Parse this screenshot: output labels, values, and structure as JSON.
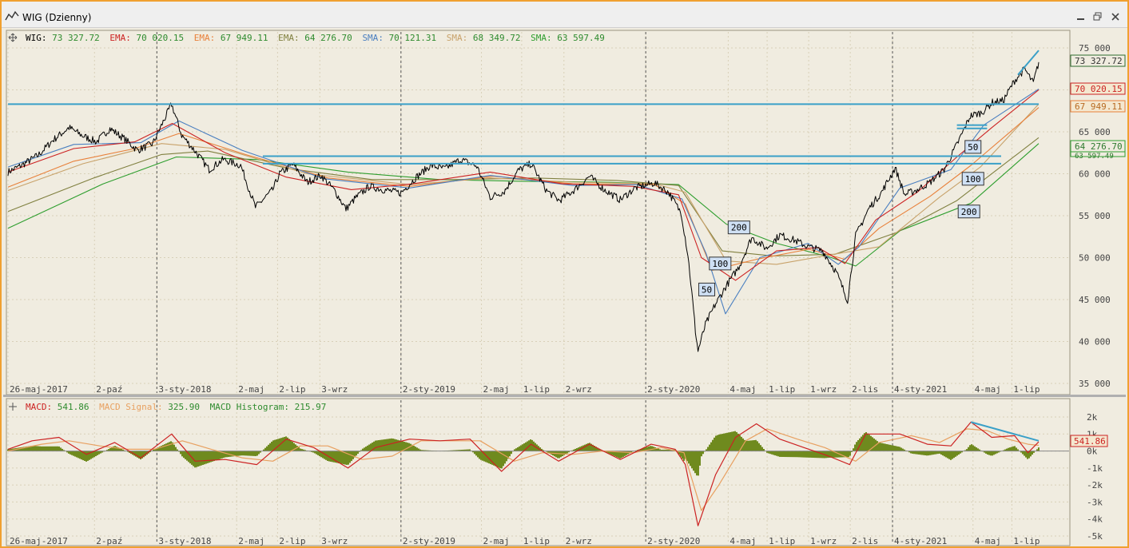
{
  "window": {
    "title": "WIG (Dzienny)"
  },
  "colors": {
    "price": "#000000",
    "ema_fast": "#cc2222",
    "ema_mid": "#e8803a",
    "ema_slow": "#808040",
    "sma_fast": "#4a7fc0",
    "sma_mid": "#c8a26a",
    "sma_slow": "#2e9e2e",
    "trendline": "#3aa0c8",
    "macd": "#cc2222",
    "signal": "#e8a060",
    "histogram": "#6f8a1e",
    "pane_bg": "#f0ece0",
    "grid": "#d8d0b8"
  },
  "legend": {
    "price": {
      "name": "WIG",
      "value": "73 327.72"
    },
    "ema1": {
      "name": "EMA",
      "value": "70 020.15"
    },
    "ema2": {
      "name": "EMA",
      "value": "67 949.11"
    },
    "ema3": {
      "name": "EMA",
      "value": "64 276.70"
    },
    "sma1": {
      "name": "SMA",
      "value": "70 121.31"
    },
    "sma2": {
      "name": "SMA",
      "value": "68 349.72"
    },
    "sma3": {
      "name": "SMA",
      "value": "63 597.49"
    }
  },
  "macd_legend": {
    "macd": {
      "name": "MACD",
      "value": "541.86"
    },
    "signal": {
      "name": "MACD Signal",
      "value": "325.90"
    },
    "hist": {
      "name": "MACD Histogram",
      "value": "215.97"
    }
  },
  "right_labels": {
    "price": "73 327.72",
    "ema1": "70 020.15",
    "ema2": "67 949.11",
    "ema3": "64 276.70",
    "sma3": "63 597.49",
    "macd": "541.86"
  },
  "chart_data": [
    {
      "type": "line",
      "pane": "price",
      "ylim": [
        35000,
        75000
      ],
      "y_ticks": [
        {
          "v": 75000,
          "label": "75 000"
        },
        {
          "v": 70000,
          "label": "70 000"
        },
        {
          "v": 65000,
          "label": "65 000"
        },
        {
          "v": 60000,
          "label": "60 000"
        },
        {
          "v": 55000,
          "label": "55 000"
        },
        {
          "v": 50000,
          "label": "50 000"
        },
        {
          "v": 45000,
          "label": "45 000"
        },
        {
          "v": 40000,
          "label": "40 000"
        },
        {
          "v": 35000,
          "label": "35 000"
        }
      ],
      "x_range": [
        "2017-05-26",
        "2021-08-10"
      ],
      "x_ticks": [
        {
          "date": "2017-05-26",
          "label": "26-maj-2017"
        },
        {
          "date": "2017-10-02",
          "label": "2-paź"
        },
        {
          "date": "2018-01-03",
          "label": "3-sty-2018"
        },
        {
          "date": "2018-05-02",
          "label": "2-maj"
        },
        {
          "date": "2018-07-02",
          "label": "2-lip"
        },
        {
          "date": "2018-09-03",
          "label": "3-wrz"
        },
        {
          "date": "2019-01-02",
          "label": "2-sty-2019"
        },
        {
          "date": "2019-05-02",
          "label": "2-maj"
        },
        {
          "date": "2019-07-01",
          "label": "1-lip"
        },
        {
          "date": "2019-09-02",
          "label": "2-wrz"
        },
        {
          "date": "2020-01-02",
          "label": "2-sty-2020"
        },
        {
          "date": "2020-05-04",
          "label": "4-maj"
        },
        {
          "date": "2020-07-01",
          "label": "1-lip"
        },
        {
          "date": "2020-09-01",
          "label": "1-wrz"
        },
        {
          "date": "2020-11-02",
          "label": "2-lis"
        },
        {
          "date": "2021-01-04",
          "label": "4-sty-2021"
        },
        {
          "date": "2021-05-04",
          "label": "4-maj"
        },
        {
          "date": "2021-07-01",
          "label": "1-lip"
        }
      ],
      "year_lines": [
        "2018-01-03",
        "2019-01-02",
        "2020-01-02",
        "2021-01-04"
      ],
      "series": [
        {
          "key": "price",
          "x": [
            "2017-05-26",
            "2017-06-15",
            "2017-07-10",
            "2017-08-01",
            "2017-08-25",
            "2017-09-15",
            "2017-10-05",
            "2017-10-25",
            "2017-11-15",
            "2017-12-05",
            "2017-12-28",
            "2018-01-25",
            "2018-02-09",
            "2018-03-01",
            "2018-03-22",
            "2018-04-12",
            "2018-05-08",
            "2018-05-30",
            "2018-06-25",
            "2018-07-05",
            "2018-07-25",
            "2018-08-15",
            "2018-09-05",
            "2018-09-25",
            "2018-10-12",
            "2018-10-26",
            "2018-11-16",
            "2018-12-07",
            "2019-01-02",
            "2019-01-25",
            "2019-02-15",
            "2019-03-08",
            "2019-04-01",
            "2019-04-25",
            "2019-05-15",
            "2019-06-05",
            "2019-06-26",
            "2019-07-15",
            "2019-08-07",
            "2019-08-26",
            "2019-09-18",
            "2019-10-10",
            "2019-11-01",
            "2019-11-25",
            "2019-12-17",
            "2020-01-15",
            "2020-02-05",
            "2020-02-24",
            "2020-03-05",
            "2020-03-12",
            "2020-03-16",
            "2020-03-20",
            "2020-03-31",
            "2020-04-14",
            "2020-04-30",
            "2020-05-20",
            "2020-06-08",
            "2020-06-30",
            "2020-07-20",
            "2020-08-10",
            "2020-08-31",
            "2020-09-22",
            "2020-10-12",
            "2020-10-29",
            "2020-11-10",
            "2020-11-30",
            "2020-12-18",
            "2021-01-08",
            "2021-01-22",
            "2021-02-10",
            "2021-03-01",
            "2021-03-22",
            "2021-04-12",
            "2021-04-30",
            "2021-05-17",
            "2021-06-02",
            "2021-06-18",
            "2021-07-05",
            "2021-07-20",
            "2021-08-02",
            "2021-08-10"
          ],
          "values": [
            60200,
            61000,
            62200,
            64000,
            65500,
            64500,
            63800,
            65400,
            64200,
            62800,
            63600,
            68300,
            64600,
            62700,
            60500,
            61700,
            61000,
            56000,
            58100,
            60000,
            61100,
            59000,
            59800,
            58000,
            55800,
            57100,
            58500,
            58100,
            57700,
            59600,
            61000,
            60600,
            61700,
            60900,
            57200,
            57900,
            60400,
            61200,
            58000,
            56800,
            58100,
            59700,
            58100,
            56900,
            58300,
            58900,
            57800,
            55300,
            50300,
            44800,
            41300,
            38900,
            42000,
            44300,
            46500,
            48900,
            52400,
            51100,
            52700,
            52100,
            51300,
            50800,
            48300,
            44900,
            52600,
            55900,
            57700,
            60700,
            57500,
            58100,
            59000,
            60500,
            63800,
            66900,
            67300,
            68500,
            68700,
            71100,
            72500,
            70800,
            73300
          ]
        },
        {
          "key": "ema_fast",
          "x": [
            "2017-05-26",
            "2017-09-01",
            "2017-12-01",
            "2018-01-26",
            "2018-04-15",
            "2018-07-15",
            "2018-10-20",
            "2019-01-20",
            "2019-05-15",
            "2019-08-30",
            "2019-12-15",
            "2020-02-20",
            "2020-03-25",
            "2020-05-15",
            "2020-07-15",
            "2020-09-15",
            "2020-10-25",
            "2020-12-10",
            "2021-02-10",
            "2021-04-10",
            "2021-06-01",
            "2021-08-10"
          ],
          "values": [
            60200,
            63000,
            63800,
            66000,
            62500,
            59600,
            58100,
            58800,
            60200,
            58800,
            58500,
            57500,
            50000,
            47300,
            50800,
            51200,
            49300,
            54500,
            57800,
            62000,
            65500,
            70000
          ]
        },
        {
          "key": "ema_mid",
          "x": [
            "2017-05-26",
            "2017-09-01",
            "2017-12-01",
            "2018-02-05",
            "2018-05-15",
            "2018-09-15",
            "2019-01-15",
            "2019-05-20",
            "2019-09-15",
            "2020-01-15",
            "2020-03-01",
            "2020-04-10",
            "2020-06-15",
            "2020-09-01",
            "2020-10-25",
            "2020-12-15",
            "2021-03-01",
            "2021-05-01",
            "2021-08-10"
          ],
          "values": [
            58400,
            61500,
            63000,
            64800,
            62300,
            59500,
            58500,
            59700,
            58800,
            58700,
            56400,
            48500,
            49800,
            51000,
            49800,
            53500,
            57300,
            61000,
            67900
          ]
        },
        {
          "key": "ema_slow",
          "x": [
            "2017-05-26",
            "2017-10-01",
            "2018-01-10",
            "2018-03-20",
            "2018-07-20",
            "2018-11-20",
            "2019-03-20",
            "2019-07-20",
            "2019-11-20",
            "2020-02-20",
            "2020-04-25",
            "2020-07-10",
            "2020-10-10",
            "2021-01-10",
            "2021-04-10",
            "2021-08-10"
          ],
          "values": [
            55500,
            59500,
            62300,
            62700,
            60600,
            59300,
            59300,
            59500,
            59200,
            58600,
            50800,
            50200,
            50400,
            53000,
            56800,
            64300
          ]
        },
        {
          "key": "sma_fast",
          "x": [
            "2017-05-26",
            "2017-09-01",
            "2017-12-10",
            "2018-02-05",
            "2018-05-10",
            "2018-09-10",
            "2019-01-15",
            "2019-05-15",
            "2019-09-15",
            "2019-12-20",
            "2020-02-25",
            "2020-04-01",
            "2020-04-30",
            "2020-06-20",
            "2020-08-31",
            "2020-10-15",
            "2020-11-15",
            "2021-01-15",
            "2021-04-01",
            "2021-05-20",
            "2021-08-10"
          ],
          "values": [
            60800,
            63500,
            63700,
            66300,
            62800,
            59400,
            58300,
            59800,
            58600,
            58700,
            57000,
            50500,
            43300,
            50000,
            51700,
            49200,
            51300,
            58300,
            60500,
            65800,
            70100
          ]
        },
        {
          "key": "sma_mid",
          "x": [
            "2017-05-26",
            "2017-09-15",
            "2018-01-10",
            "2018-04-15",
            "2018-08-15",
            "2019-01-15",
            "2019-05-15",
            "2019-09-15",
            "2020-01-15",
            "2020-03-01",
            "2020-05-01",
            "2020-07-15",
            "2020-10-15",
            "2020-12-15",
            "2021-03-15",
            "2021-05-15",
            "2021-08-10"
          ],
          "values": [
            58000,
            61200,
            63600,
            62900,
            60000,
            58700,
            59500,
            59000,
            58800,
            57800,
            49600,
            49200,
            50500,
            51300,
            57200,
            60800,
            68300
          ]
        },
        {
          "key": "sma_slow",
          "x": [
            "2017-05-26",
            "2017-10-15",
            "2018-02-01",
            "2018-06-01",
            "2018-10-15",
            "2019-03-01",
            "2019-07-01",
            "2019-11-01",
            "2020-02-20",
            "2020-05-01",
            "2020-07-15",
            "2020-10-01",
            "2020-11-10",
            "2021-01-15",
            "2021-05-01",
            "2021-08-10"
          ],
          "values": [
            53500,
            58800,
            62000,
            61700,
            60200,
            59300,
            59100,
            59000,
            58700,
            54000,
            51700,
            50100,
            49000,
            53200,
            56500,
            63600
          ]
        }
      ],
      "trendlines": [
        {
          "x": [
            "2017-05-26",
            "2021-08-10"
          ],
          "values": [
            68300,
            68300
          ]
        },
        {
          "x": [
            "2018-06-10",
            "2021-06-15"
          ],
          "values": [
            62100,
            62100
          ]
        },
        {
          "x": [
            "2018-06-10",
            "2021-06-15"
          ],
          "values": [
            61200,
            61200
          ]
        },
        {
          "x": [
            "2021-04-10",
            "2021-05-25"
          ],
          "values": [
            65800,
            65800
          ]
        },
        {
          "x": [
            "2021-04-10",
            "2021-05-25"
          ],
          "values": [
            65400,
            65400
          ]
        },
        {
          "x": [
            "2021-07-10",
            "2021-08-10"
          ],
          "values": [
            71800,
            74700
          ]
        }
      ],
      "annotations": [
        {
          "date": "2020-04-02",
          "value": 46200,
          "label": "50"
        },
        {
          "date": "2020-04-22",
          "value": 49300,
          "label": "100"
        },
        {
          "date": "2020-05-20",
          "value": 53600,
          "label": "200"
        },
        {
          "date": "2021-05-04",
          "value": 63200,
          "label": "50"
        },
        {
          "date": "2021-05-04",
          "value": 59400,
          "label": "100"
        },
        {
          "date": "2021-04-28",
          "value": 55500,
          "label": "200"
        }
      ]
    },
    {
      "type": "line",
      "pane": "macd",
      "ylim": [
        -5000,
        2000
      ],
      "y_ticks": [
        {
          "v": 2000,
          "label": "2k"
        },
        {
          "v": 1000,
          "label": "1k"
        },
        {
          "v": 0,
          "label": "0k"
        },
        {
          "v": -1000,
          "label": "-1k"
        },
        {
          "v": -2000,
          "label": "-2k"
        },
        {
          "v": -3000,
          "label": "-3k"
        },
        {
          "v": -4000,
          "label": "-4k"
        },
        {
          "v": -5000,
          "label": "-5k"
        }
      ],
      "x_range": [
        "2017-05-26",
        "2021-08-10"
      ],
      "series": [
        {
          "key": "macd",
          "x": [
            "2017-05-26",
            "2017-07-01",
            "2017-08-10",
            "2017-09-20",
            "2017-11-01",
            "2017-12-10",
            "2018-01-25",
            "2018-03-01",
            "2018-04-15",
            "2018-06-01",
            "2018-07-15",
            "2018-08-25",
            "2018-10-15",
            "2018-11-25",
            "2019-01-15",
            "2019-03-01",
            "2019-04-15",
            "2019-06-01",
            "2019-07-15",
            "2019-08-25",
            "2019-10-10",
            "2019-11-25",
            "2020-01-10",
            "2020-02-15",
            "2020-03-01",
            "2020-03-20",
            "2020-04-15",
            "2020-05-15",
            "2020-06-15",
            "2020-07-20",
            "2020-08-25",
            "2020-10-01",
            "2020-11-01",
            "2020-11-25",
            "2021-01-15",
            "2021-02-25",
            "2021-04-01",
            "2021-05-01",
            "2021-06-01",
            "2021-07-05",
            "2021-07-25",
            "2021-08-10"
          ],
          "values": [
            100,
            600,
            800,
            -200,
            500,
            -400,
            1000,
            -600,
            -500,
            -800,
            700,
            200,
            -1000,
            200,
            700,
            600,
            700,
            -1200,
            400,
            -600,
            400,
            -500,
            400,
            100,
            -800,
            -4400,
            -1400,
            800,
            1600,
            700,
            200,
            -300,
            -800,
            1000,
            1000,
            400,
            300,
            1700,
            800,
            900,
            -100,
            540
          ]
        },
        {
          "key": "signal",
          "x": [
            "2017-05-26",
            "2017-07-15",
            "2017-08-25",
            "2017-10-10",
            "2017-11-20",
            "2017-12-30",
            "2018-02-10",
            "2018-03-25",
            "2018-05-10",
            "2018-06-25",
            "2018-08-05",
            "2018-09-15",
            "2018-11-05",
            "2018-12-20",
            "2019-02-01",
            "2019-03-15",
            "2019-04-30",
            "2019-06-20",
            "2019-08-01",
            "2019-09-15",
            "2019-10-30",
            "2019-12-15",
            "2020-01-25",
            "2020-02-28",
            "2020-03-25",
            "2020-04-20",
            "2020-05-30",
            "2020-07-01",
            "2020-08-15",
            "2020-09-25",
            "2020-11-10",
            "2020-12-15",
            "2021-02-01",
            "2021-03-15",
            "2021-04-25",
            "2021-05-25",
            "2021-06-25",
            "2021-07-25",
            "2021-08-10"
          ],
          "values": [
            0,
            400,
            600,
            300,
            100,
            100,
            600,
            100,
            -400,
            -600,
            300,
            300,
            -500,
            -300,
            600,
            600,
            600,
            -600,
            -100,
            -200,
            0,
            -100,
            200,
            -100,
            -3500,
            -2000,
            600,
            1300,
            700,
            200,
            -600,
            500,
            900,
            500,
            1300,
            1200,
            700,
            400,
            330
          ]
        }
      ]
    }
  ]
}
